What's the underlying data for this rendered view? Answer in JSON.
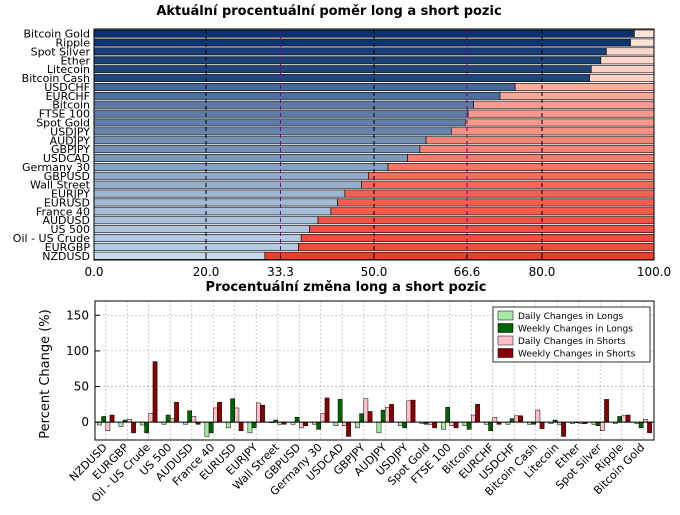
{
  "chart_data": [
    {
      "type": "bar",
      "orientation": "horizontal",
      "stacked": true,
      "title": "Aktuální procentuální poměr long a short pozic",
      "categories": [
        "Bitcoin Gold",
        "Ripple",
        "Spot Silver",
        "Ether",
        "Litecoin",
        "Bitcoin Cash",
        "USDCHF",
        "EURCHF",
        "Bitcoin",
        "FTSE 100",
        "Spot Gold",
        "USDJPY",
        "AUDJPY",
        "GBPJPY",
        "USDCAD",
        "Germany 30",
        "GBPUSD",
        "Wall Street",
        "EURJPY",
        "EURUSD",
        "France 40",
        "AUDUSD",
        "US 500",
        "Oil - US Crude",
        "EURGBP",
        "NZDUSD"
      ],
      "long_values": [
        96.5,
        95.8,
        91.5,
        90.5,
        88.8,
        88.5,
        75.2,
        72.5,
        67.8,
        66.8,
        66.3,
        63.8,
        59.3,
        58.2,
        56.0,
        52.5,
        49.0,
        47.8,
        44.8,
        43.5,
        42.3,
        40.0,
        38.5,
        37.0,
        36.5,
        30.5
      ],
      "xlim": [
        0,
        100
      ],
      "xticks": [
        "0.0",
        "20.0",
        "33.3",
        "50.0",
        "66.6",
        "80.0",
        "100.0"
      ],
      "xtick_values": [
        0,
        20,
        33.3,
        50,
        66.6,
        80,
        100
      ],
      "highlight_ticks": [
        "33.3",
        "66.6"
      ],
      "highlight_color": "#800080"
    },
    {
      "type": "bar",
      "title": "Procentuální změna long a short pozic",
      "ylabel": "Percent Change (%)",
      "ylim": [
        -25,
        170
      ],
      "yticks": [
        "0",
        "50",
        "100",
        "150"
      ],
      "ytick_values": [
        0,
        50,
        100,
        150
      ],
      "legend_position": "top-right",
      "grid": true,
      "categories": [
        "NZDUSD",
        "EURGBP",
        "Oil - US Crude",
        "US 500",
        "AUDUSD",
        "France 40",
        "EURUSD",
        "EURJPY",
        "Wall Street",
        "GBPUSD",
        "Germany 30",
        "USDCAD",
        "GBPJPY",
        "AUDJPY",
        "USDJPY",
        "Spot Gold",
        "FTSE 100",
        "Bitcoin",
        "EURCHF",
        "USDCHF",
        "Bitcoin Cash",
        "Litecoin",
        "Ether",
        "Spot Silver",
        "Ripple",
        "Bitcoin Gold"
      ],
      "series": [
        {
          "name": "Daily Changes in Longs",
          "color": "#a6e8a6",
          "values": [
            -4,
            -6,
            -4,
            -3,
            -3,
            -20,
            -8,
            -15,
            0,
            -3,
            -3,
            -5,
            -8,
            -15,
            -5,
            -2,
            -10,
            -5,
            -3,
            -3,
            -3,
            -2,
            -2,
            -3,
            -2,
            -2
          ]
        },
        {
          "name": "Weekly Changes in Longs",
          "color": "#006400",
          "values": [
            8,
            3,
            -15,
            10,
            16,
            -15,
            33,
            -8,
            3,
            7,
            -10,
            32,
            12,
            17,
            -8,
            -3,
            21,
            -10,
            -12,
            5,
            -3,
            3,
            0,
            -5,
            8,
            -8
          ]
        },
        {
          "name": "Daily Changes in Shorts",
          "color": "#ffc0cb",
          "values": [
            -12,
            4,
            12,
            5,
            8,
            20,
            20,
            27,
            -3,
            -8,
            12,
            -5,
            33,
            21,
            30,
            -3,
            -5,
            10,
            7,
            9,
            17,
            -3,
            -2,
            -12,
            9,
            4
          ]
        },
        {
          "name": "Weekly Changes in Shorts",
          "color": "#8b0000",
          "values": [
            10,
            -15,
            85,
            28,
            -3,
            28,
            -12,
            24,
            -3,
            -5,
            34,
            -20,
            15,
            25,
            31,
            -8,
            -8,
            25,
            -3,
            9,
            -9,
            -20,
            -2,
            32,
            10,
            -15
          ]
        }
      ]
    }
  ]
}
